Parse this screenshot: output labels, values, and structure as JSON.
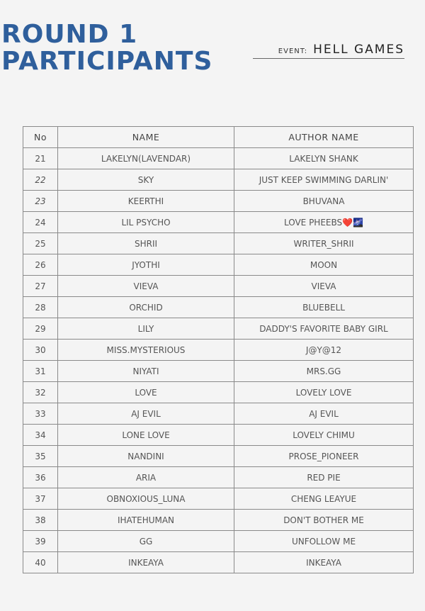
{
  "title": {
    "line1": "ROUND 1",
    "line2": "PARTICIPANTS"
  },
  "event": {
    "label": "EVENT:",
    "value": "HELL GAMES"
  },
  "table": {
    "headers": [
      "No",
      "NAME",
      "AUTHOR NAME"
    ],
    "rows": [
      [
        "21",
        "LAKELYN(LAVENDAR)",
        "LAKELYN SHANK"
      ],
      [
        "22",
        "SKY",
        "JUST KEEP SWIMMING DARLIN'"
      ],
      [
        "23",
        "KEERTHI",
        "BHUVANA"
      ],
      [
        "24",
        "LIL PSYCHO",
        "LOVE PHEEBS❤️🌌"
      ],
      [
        "25",
        "SHRII",
        "WRITER_SHRII"
      ],
      [
        "26",
        "JYOTHI",
        "MOON"
      ],
      [
        "27",
        "VIEVA",
        "VIEVA"
      ],
      [
        "28",
        "ORCHID",
        "BLUEBELL"
      ],
      [
        "29",
        "LILY",
        "DADDY'S FAVORITE BABY GIRL"
      ],
      [
        "30",
        "MISS.MYSTERIOUS",
        "J@Y@12"
      ],
      [
        "31",
        "NIYATI",
        "MRS.GG"
      ],
      [
        "32",
        "LOVE",
        "LOVELY LOVE"
      ],
      [
        "33",
        "AJ EVIL",
        "AJ EVIL"
      ],
      [
        "34",
        "LONE LOVE",
        "LOVELY CHIMU"
      ],
      [
        "35",
        "NANDINI",
        "PROSE_PIONEER"
      ],
      [
        "36",
        "ARIA",
        "RED PIE"
      ],
      [
        "37",
        "OBNOXIOUS_LUNA",
        "CHENG LEAYUE"
      ],
      [
        "38",
        "IHATEHUMAN",
        "DON'T BOTHER ME"
      ],
      [
        "39",
        "GG",
        "UNFOLLOW ME"
      ],
      [
        "40",
        "INKEAYA",
        "INKEAYA"
      ]
    ]
  },
  "colors": {
    "title": "#2f5f9c",
    "background": "#f4f4f4",
    "border": "#8a8a8a"
  }
}
